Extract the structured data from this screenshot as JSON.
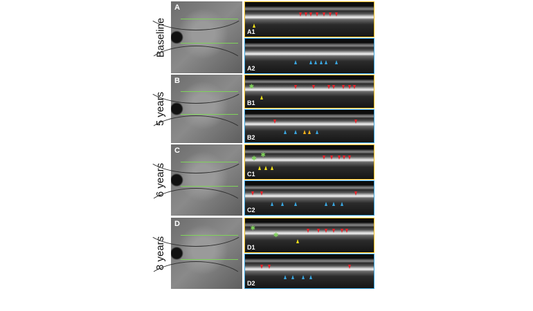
{
  "rows": [
    {
      "label": "Baseline",
      "letter": "A",
      "panels": [
        "A1",
        "A2"
      ]
    },
    {
      "label": "5 years",
      "letter": "B",
      "panels": [
        "B1",
        "B2"
      ]
    },
    {
      "label": "6 years",
      "letter": "C",
      "panels": [
        "C1",
        "C2"
      ]
    },
    {
      "label": "8 years",
      "letter": "D",
      "panels": [
        "D1",
        "D2"
      ]
    }
  ],
  "colors": {
    "top_panel_border": "#f2c01a",
    "bottom_panel_border": "#3aa6e0",
    "scan_line": "#7fd35a",
    "red_arrow": "#e8222a",
    "blue_arrow": "#3aa6e0",
    "yellow_arrowhead": "#f2e01a",
    "green_star": "#7fd35a"
  }
}
